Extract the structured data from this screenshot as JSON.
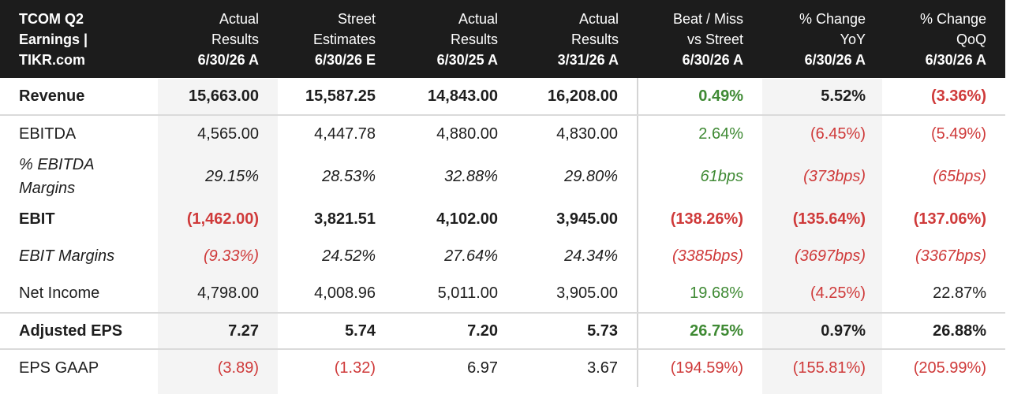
{
  "header": {
    "title_lines": [
      "TCOM Q2",
      "Earnings |",
      "TIKR.com"
    ],
    "columns": [
      {
        "line1": "Actual",
        "line2": "Results",
        "line3": "6/30/26 A"
      },
      {
        "line1": "Street",
        "line2": "Estimates",
        "line3": "6/30/26 E"
      },
      {
        "line1": "Actual",
        "line2": "Results",
        "line3": "6/30/25 A"
      },
      {
        "line1": "Actual",
        "line2": "Results",
        "line3": "3/31/26 A"
      },
      {
        "line1": "Beat / Miss",
        "line2": "vs Street",
        "line3": "6/30/26 A"
      },
      {
        "line1": "% Change",
        "line2": "YoY",
        "line3": "6/30/26 A"
      },
      {
        "line1": "% Change",
        "line2": "QoQ",
        "line3": "6/30/26 A"
      }
    ]
  },
  "rows": [
    {
      "label": "Revenue",
      "cells": [
        "15,663.00",
        "15,587.25",
        "14,843.00",
        "16,208.00",
        "0.49%",
        "5.52%",
        "(3.36%)"
      ]
    },
    {
      "label": "EBITDA",
      "cells": [
        "4,565.00",
        "4,447.78",
        "4,880.00",
        "4,830.00",
        "2.64%",
        "(6.45%)",
        "(5.49%)"
      ]
    },
    {
      "label": "% EBITDA Margins",
      "cells": [
        "29.15%",
        "28.53%",
        "32.88%",
        "29.80%",
        "61bps",
        "(373bps)",
        "(65bps)"
      ]
    },
    {
      "label": "EBIT",
      "cells": [
        "(1,462.00)",
        "3,821.51",
        "4,102.00",
        "3,945.00",
        "(138.26%)",
        "(135.64%)",
        "(137.06%)"
      ]
    },
    {
      "label": "EBIT Margins",
      "cells": [
        "(9.33%)",
        "24.52%",
        "27.64%",
        "24.34%",
        "(3385bps)",
        "(3697bps)",
        "(3367bps)"
      ]
    },
    {
      "label": "Net Income",
      "cells": [
        "4,798.00",
        "4,008.96",
        "5,011.00",
        "3,905.00",
        "19.68%",
        "(4.25%)",
        "22.87%"
      ]
    },
    {
      "label": "Adjusted EPS",
      "cells": [
        "7.27",
        "5.74",
        "7.20",
        "5.73",
        "26.75%",
        "0.97%",
        "26.88%"
      ]
    },
    {
      "label": "EPS GAAP",
      "cells": [
        "(3.89)",
        "(1.32)",
        "6.97",
        "3.67",
        "(194.59%)",
        "(155.81%)",
        "(205.99%)"
      ]
    }
  ],
  "colors": {
    "negative": "#cf3a3a",
    "positive": "#3f8a34",
    "header_bg": "#1c1c1c",
    "shade": "#f4f4f4"
  }
}
